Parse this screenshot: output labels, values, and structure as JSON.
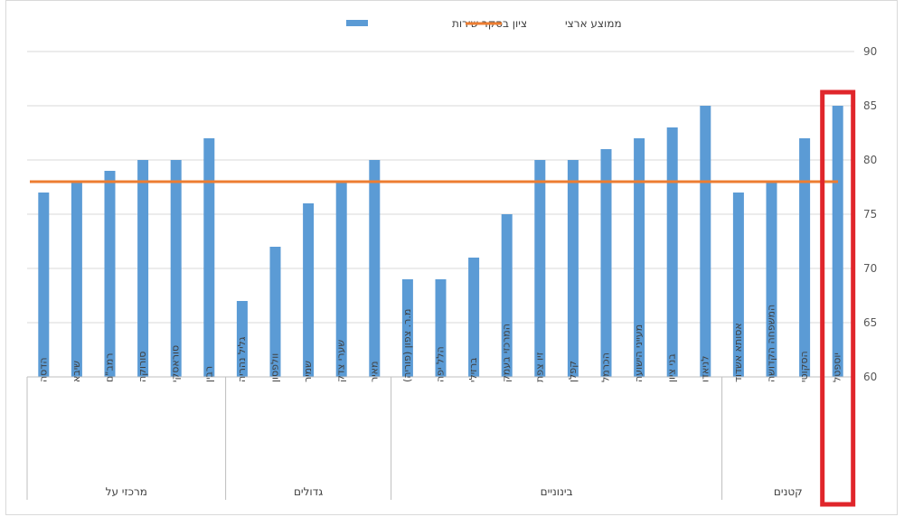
{
  "chart_data": {
    "type": "bar",
    "title": "",
    "xlabel": "",
    "ylabel": "",
    "ylim": [
      60,
      90
    ],
    "yticks": [
      60,
      65,
      70,
      75,
      80,
      85,
      90
    ],
    "grid": true,
    "legend_position": "top",
    "series": [
      {
        "name": "ציון בסקר שירות",
        "color": "#5B9BD5",
        "categories": [
          "הדסה",
          "שיבא",
          "רמב\"ם",
          "סורוקה",
          "סוראסקי",
          "רבין",
          "גליל נהריה",
          "וולפסון",
          "שמיר",
          "שערי צדק",
          "מאיר",
          "מ.ר. צפון (פוריה)",
          "הלל יפה",
          "ברזילי",
          "המרכזי בעמק",
          "זיו צפת",
          "קפלן",
          "הכרמל",
          "מעייני הישועה",
          "בני ציון",
          "לניאדו",
          "אסותא אשדוד",
          "המשפחה הקדושה",
          "הסקוטי",
          "יוספטל"
        ],
        "values": [
          77,
          78,
          79,
          80,
          80,
          82,
          67,
          72,
          76,
          78,
          80,
          69,
          69,
          71,
          75,
          80,
          80,
          81,
          82,
          83,
          85,
          77,
          78,
          82,
          85
        ]
      },
      {
        "name": "ממוצע ארצי",
        "color": "#ED7D31",
        "type": "line",
        "value": 78
      }
    ],
    "groups": [
      {
        "label": "מרכזי על",
        "count": 6
      },
      {
        "label": "גדולים",
        "count": 5
      },
      {
        "label": "בינוניים",
        "count": 10
      },
      {
        "label": "קטנים",
        "count": 4
      }
    ],
    "highlight": {
      "category": "יוספטל",
      "color": "#E0262B"
    }
  }
}
